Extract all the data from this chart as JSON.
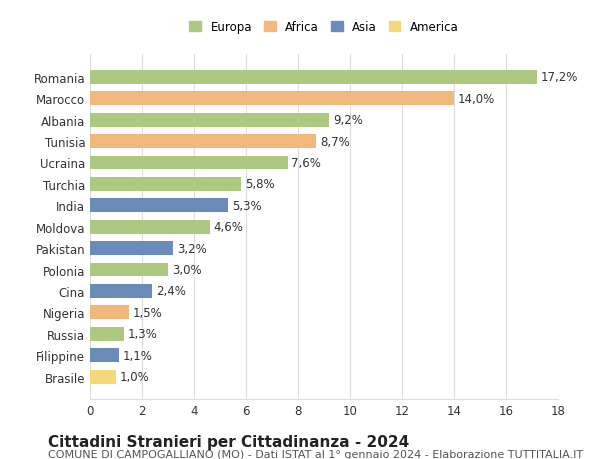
{
  "countries": [
    "Brasile",
    "Filippine",
    "Russia",
    "Nigeria",
    "Cina",
    "Polonia",
    "Pakistan",
    "Moldova",
    "India",
    "Turchia",
    "Ucraina",
    "Tunisia",
    "Albania",
    "Marocco",
    "Romania"
  ],
  "values": [
    1.0,
    1.1,
    1.3,
    1.5,
    2.4,
    3.0,
    3.2,
    4.6,
    5.3,
    5.8,
    7.6,
    8.7,
    9.2,
    14.0,
    17.2
  ],
  "continents": [
    "America",
    "Asia",
    "Europa",
    "Africa",
    "Asia",
    "Europa",
    "Asia",
    "Europa",
    "Asia",
    "Europa",
    "Europa",
    "Africa",
    "Europa",
    "Africa",
    "Europa"
  ],
  "continent_colors": {
    "Europa": "#adc97f",
    "Africa": "#f0b87a",
    "Asia": "#6b8cba",
    "America": "#f5d87a"
  },
  "legend_order": [
    "Europa",
    "Africa",
    "Asia",
    "America"
  ],
  "legend_colors": {
    "Europa": "#adc97f",
    "Africa": "#f0b87a",
    "Asia": "#6b8cba",
    "America": "#f5d87a"
  },
  "title": "Cittadini Stranieri per Cittadinanza - 2024",
  "subtitle": "COMUNE DI CAMPOGALLIANO (MO) - Dati ISTAT al 1° gennaio 2024 - Elaborazione TUTTITALIA.IT",
  "xlabel": "",
  "xlim": [
    0,
    18
  ],
  "xticks": [
    0,
    2,
    4,
    6,
    8,
    10,
    12,
    14,
    16,
    18
  ],
  "background_color": "#ffffff",
  "grid_color": "#dddddd",
  "bar_height": 0.65,
  "label_fontsize": 8.5,
  "title_fontsize": 11,
  "subtitle_fontsize": 8,
  "tick_fontsize": 8.5,
  "value_label_format": "{}%"
}
